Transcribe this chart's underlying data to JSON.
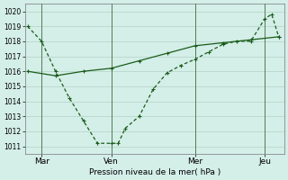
{
  "background_color": "#d4eee8",
  "grid_color": "#b8d8cc",
  "line_color": "#1a5c1a",
  "title": "Pression niveau de la mer( hPa )",
  "ylim": [
    1010.5,
    1020.5
  ],
  "yticks": [
    1011,
    1012,
    1013,
    1014,
    1015,
    1016,
    1017,
    1018,
    1019,
    1020
  ],
  "day_labels": [
    "Mar",
    "Ven",
    "Mer",
    "Jeu"
  ],
  "day_positions": [
    0.5,
    3.0,
    6.0,
    8.5
  ],
  "line1_x": [
    0,
    0.5,
    1.0,
    1.5,
    2.0,
    2.5,
    3.0,
    3.25,
    3.5,
    4.0,
    4.5,
    5.0,
    5.5,
    6.0,
    6.5,
    7.0,
    7.5,
    8.0,
    8.5,
    8.75,
    9.0
  ],
  "line1_y": [
    1019.0,
    1018.0,
    1016.0,
    1014.2,
    1012.7,
    1011.2,
    1011.2,
    1011.2,
    1012.2,
    1013.0,
    1014.8,
    1015.9,
    1016.4,
    1016.8,
    1017.3,
    1017.8,
    1018.0,
    1018.0,
    1019.5,
    1019.8,
    1018.3
  ],
  "line2_x": [
    0,
    1.0,
    2.0,
    3.0,
    4.0,
    5.0,
    6.0,
    7.0,
    8.0,
    9.0
  ],
  "line2_y": [
    1016.0,
    1015.7,
    1016.0,
    1016.2,
    1016.7,
    1017.2,
    1017.7,
    1017.9,
    1018.1,
    1018.3
  ],
  "vline_x": [
    0.5,
    3.0,
    6.0,
    8.5
  ],
  "xlim": [
    -0.1,
    9.2
  ],
  "figwidth": 3.2,
  "figheight": 2.0,
  "dpi": 100
}
